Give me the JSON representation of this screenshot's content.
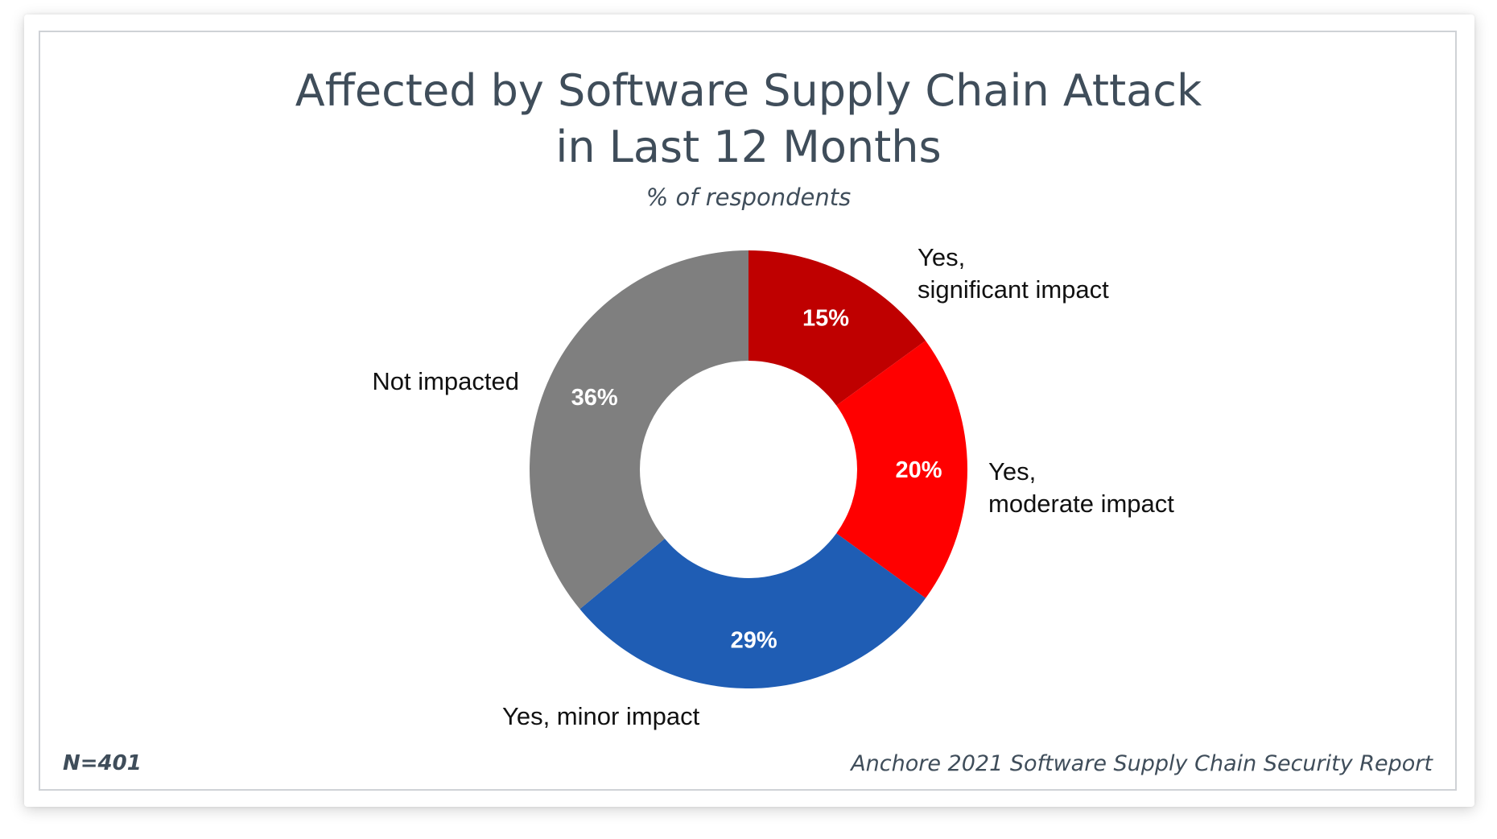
{
  "chart_data": {
    "type": "pie",
    "variant": "donut",
    "title_lines": [
      "Affected by Software Supply Chain Attack",
      "in Last 12 Months"
    ],
    "subtitle": "% of respondents",
    "slices": [
      {
        "label_lines": [
          "Yes,",
          "significant impact"
        ],
        "value": 15,
        "value_label": "15%",
        "color": "#bf0000"
      },
      {
        "label_lines": [
          "Yes,",
          "moderate impact"
        ],
        "value": 20,
        "value_label": "20%",
        "color": "#ff0000"
      },
      {
        "label_lines": [
          "Yes, minor impact"
        ],
        "value": 29,
        "value_label": "29%",
        "color": "#1f5db4"
      },
      {
        "label_lines": [
          "Not impacted"
        ],
        "value": 36,
        "value_label": "36%",
        "color": "#7f7f7f"
      }
    ]
  },
  "footer": {
    "n_note": "N=401",
    "source": "Anchore 2021 Software Supply Chain Security Report"
  }
}
